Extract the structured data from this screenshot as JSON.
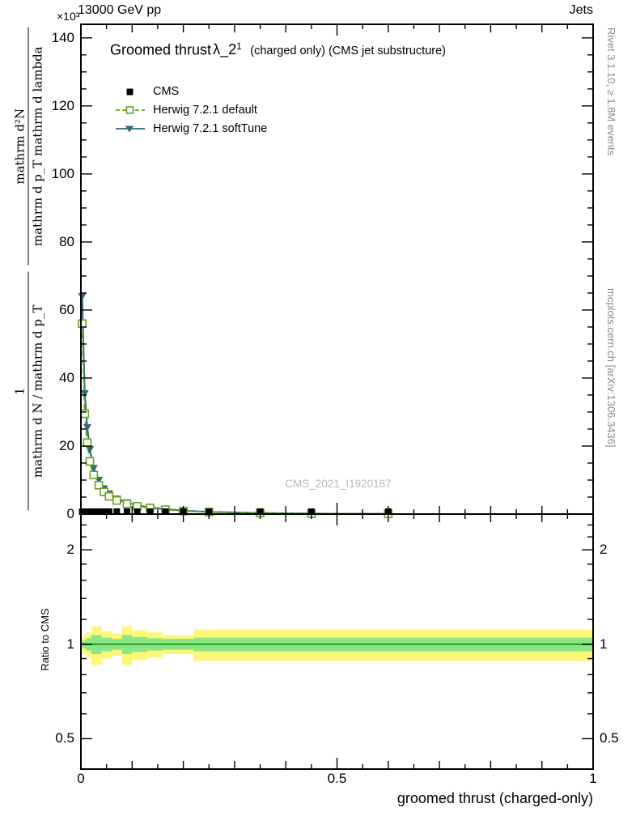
{
  "header": {
    "left": "13000 GeV pp",
    "right": "Jets",
    "exponent": "×10³"
  },
  "title": {
    "main": "Groomed thrust",
    "symbol": "λ_2",
    "superscript": "1",
    "suffix": "(charged only) (CMS jet substructure)"
  },
  "legend": [
    {
      "label": "CMS",
      "marker": "filled-square",
      "color": "#000000",
      "line": "none"
    },
    {
      "label": "Herwig 7.2.1 default",
      "marker": "open-square",
      "color": "#68a41c",
      "line": "dashed"
    },
    {
      "label": "Herwig 7.2.1 softTune",
      "marker": "filled-triangle-down",
      "color": "#2e6a78",
      "line": "solid"
    }
  ],
  "watermark": "CMS_2021_I1920187",
  "side_labels": {
    "top_right": "Rivet 3.1.10, ≥ 1.8M events",
    "bottom_right": "mcplots.cern.ch [arXiv:1306.3436]"
  },
  "y_axis": {
    "frac1_num": "1",
    "frac1_den": "mathrm d N / mathrm d p_T",
    "frac2_num": "mathrm d²N",
    "frac2_den": "mathrm d p_T mathrm d lambda",
    "tick_labels": [
      "0",
      "20",
      "40",
      "60",
      "80",
      "100",
      "120",
      "140"
    ],
    "tick_values": [
      0,
      20,
      40,
      60,
      80,
      100,
      120,
      140
    ],
    "minor_step": 5,
    "lim": [
      0,
      144
    ]
  },
  "ratio_axis": {
    "label": "Ratio to CMS",
    "tick_labels": [
      "0.5",
      "1",
      "2"
    ],
    "tick_values": [
      0.5,
      1,
      2
    ],
    "minor_values": [
      0.6,
      0.7,
      0.8,
      0.9,
      1.2,
      1.4,
      1.6,
      1.8,
      2.2,
      2.4
    ],
    "scale": "log",
    "lim": [
      0.4,
      2.6
    ]
  },
  "x_axis": {
    "title": "groomed thrust (charged-only)",
    "tick_labels": [
      "0",
      "0.5",
      "1"
    ],
    "tick_values": [
      0,
      0.5,
      1
    ],
    "lim": [
      0,
      1
    ]
  },
  "colors": {
    "cms": "#000000",
    "herwig_default": "#68a41c",
    "herwig_softtune": "#2e6a78",
    "band_yellow": "#fdf879",
    "band_green": "#8ae684",
    "ratio_line": "#27a427",
    "frame": "#000000",
    "gray_text": "#8a8a8a",
    "watermark": "#b9b9b9"
  },
  "chart_data": {
    "type": "line",
    "title": "Groomed thrust λ_2^1 (charged only) (CMS jet substructure)",
    "xlabel": "groomed thrust (charged-only)",
    "ylabel": "1/(dN/dp_T) · d²N/(dp_T dλ)",
    "y_units": "×10³",
    "xlim": [
      0,
      1
    ],
    "ylim": [
      0,
      144
    ],
    "x": [
      0.0025,
      0.0075,
      0.0125,
      0.0175,
      0.025,
      0.035,
      0.045,
      0.055,
      0.07,
      0.09,
      0.11,
      0.135,
      0.165,
      0.2,
      0.25,
      0.35,
      0.45,
      0.6
    ],
    "series": [
      {
        "name": "CMS",
        "marker": "filled-square",
        "color": "#000000",
        "line": "none",
        "values": [
          0.5,
          0.45,
          0.4,
          0.35,
          0.3,
          0.27,
          0.24,
          0.21,
          0.18,
          0.15,
          0.12,
          0.1,
          0.08,
          0.06,
          0.045,
          0.03,
          0.015,
          0.008
        ]
      },
      {
        "name": "Herwig 7.2.1 default",
        "marker": "open-square",
        "color": "#68a41c",
        "line": "dashed",
        "values": [
          56,
          29.5,
          21,
          15.5,
          11.5,
          8.5,
          6.5,
          5.2,
          4.0,
          3.0,
          2.3,
          1.8,
          1.3,
          0.9,
          0.6,
          0.3,
          0.15,
          0.06
        ]
      },
      {
        "name": "Herwig 7.2.1 softTune",
        "marker": "filled-triangle-down",
        "color": "#2e6a78",
        "line": "solid",
        "values": [
          64,
          35.5,
          25.5,
          19,
          13.5,
          10,
          7.5,
          6.0,
          4.5,
          3.4,
          2.6,
          2.0,
          1.5,
          1.0,
          0.65,
          0.32,
          0.16,
          0.06
        ]
      }
    ],
    "ratio": {
      "center_line": 1.0,
      "scale": "log",
      "ylim": [
        0.4,
        2.6
      ],
      "bands": {
        "yellow": [
          [
            0,
            0.005,
            0.95,
            1.05
          ],
          [
            0.005,
            0.01,
            0.93,
            1.07
          ],
          [
            0.01,
            0.02,
            0.91,
            1.09
          ],
          [
            0.02,
            0.04,
            0.86,
            1.14
          ],
          [
            0.04,
            0.06,
            0.9,
            1.1
          ],
          [
            0.06,
            0.08,
            0.92,
            1.08
          ],
          [
            0.08,
            0.1,
            0.86,
            1.14
          ],
          [
            0.1,
            0.13,
            0.89,
            1.11
          ],
          [
            0.13,
            0.16,
            0.91,
            1.09
          ],
          [
            0.16,
            0.22,
            0.93,
            1.07
          ],
          [
            0.22,
            1.0,
            0.885,
            1.115
          ]
        ],
        "green": [
          [
            0,
            0.005,
            0.98,
            1.02
          ],
          [
            0.005,
            0.01,
            0.97,
            1.03
          ],
          [
            0.01,
            0.02,
            0.955,
            1.045
          ],
          [
            0.02,
            0.04,
            0.93,
            1.07
          ],
          [
            0.04,
            0.06,
            0.95,
            1.05
          ],
          [
            0.06,
            0.08,
            0.96,
            1.04
          ],
          [
            0.08,
            0.1,
            0.93,
            1.07
          ],
          [
            0.1,
            0.13,
            0.945,
            1.055
          ],
          [
            0.13,
            0.16,
            0.955,
            1.045
          ],
          [
            0.16,
            0.22,
            0.96,
            1.04
          ],
          [
            0.22,
            1.0,
            0.95,
            1.05
          ]
        ]
      }
    }
  }
}
